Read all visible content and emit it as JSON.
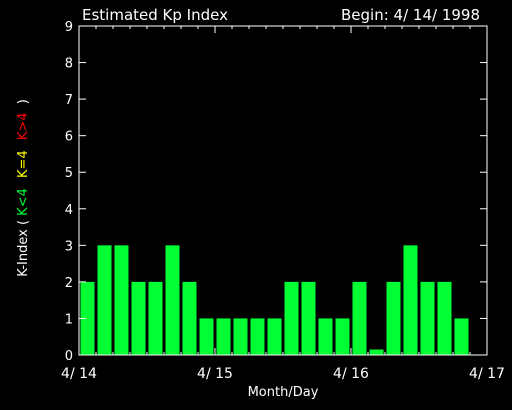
{
  "chart_data": {
    "type": "bar",
    "title": "Estimated Kp Index",
    "begin_label": "Begin: 4/ 14/ 1998",
    "xlabel": "Month/Day",
    "ylabel_prefix": "K-Index (",
    "ylabel_low": "K<4",
    "ylabel_mid": "K=4",
    "ylabel_high": "K>4",
    "ylabel_suffix": ")",
    "x_ticks": [
      "4/ 14",
      "4/ 15",
      "4/ 16",
      "4/ 17"
    ],
    "y_ticks": [
      "0",
      "1",
      "2",
      "3",
      "4",
      "5",
      "6",
      "7",
      "8",
      "9"
    ],
    "ylim": [
      0,
      9
    ],
    "values": [
      2.0,
      3.0,
      3.0,
      2.0,
      2.0,
      3.0,
      2.0,
      1.0,
      1.0,
      1.0,
      1.0,
      1.0,
      2.0,
      2.0,
      1.0,
      1.0,
      2.0,
      0.15,
      2.0,
      3.0,
      2.0,
      2.0,
      1.0,
      0.0
    ],
    "colors": {
      "low": "#00ff33",
      "mid": "#ffff00",
      "high": "#ff0000",
      "axes": "#ffffff",
      "background": "#000000"
    }
  }
}
